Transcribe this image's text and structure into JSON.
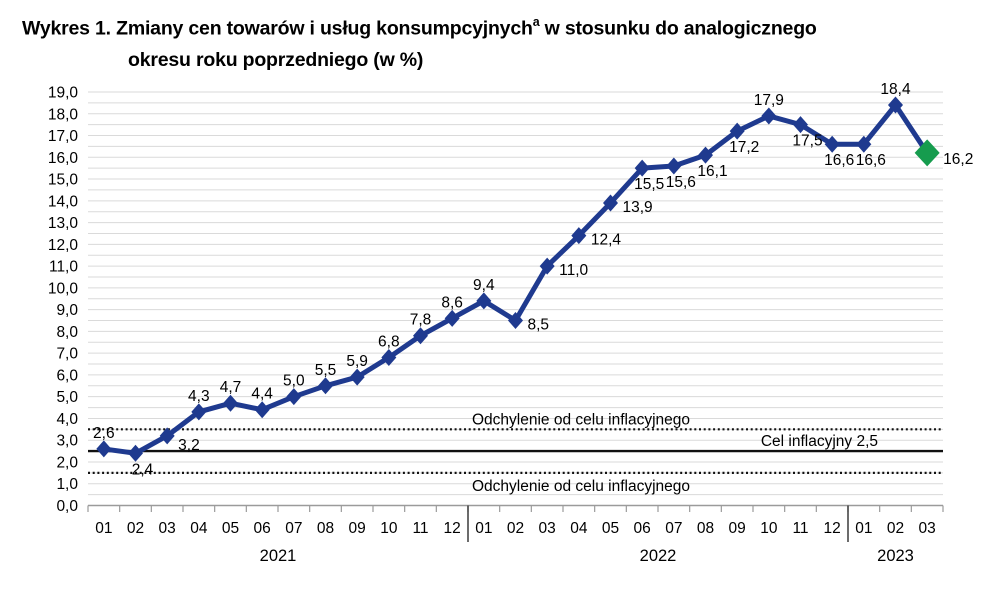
{
  "title": {
    "line1_before_sup": "Wykres 1. Zmiany cen towarów i usług konsumpcyjnych",
    "sup": "a",
    "line1_after_sup": " w stosunku do analogicznego",
    "line2": "okresu roku poprzedniego (w %)"
  },
  "chart_data": {
    "type": "line",
    "title": "Zmiany cen towarów i usług konsumpcyjnych w stosunku do analogicznego okresu roku poprzedniego (w %)",
    "ylim": [
      0,
      19
    ],
    "ytick_step": 1.0,
    "gridline_step": 0.5,
    "grid": true,
    "ytick_labels": [
      "0,0",
      "1,0",
      "2,0",
      "3,0",
      "4,0",
      "5,0",
      "6,0",
      "7,0",
      "8,0",
      "9,0",
      "10,0",
      "11,0",
      "12,0",
      "13,0",
      "14,0",
      "15,0",
      "16,0",
      "17,0",
      "18,0",
      "19,0"
    ],
    "x_groups": [
      {
        "year": "2021",
        "months": [
          "01",
          "02",
          "03",
          "04",
          "05",
          "06",
          "07",
          "08",
          "09",
          "10",
          "11",
          "12"
        ]
      },
      {
        "year": "2022",
        "months": [
          "01",
          "02",
          "03",
          "04",
          "05",
          "06",
          "07",
          "08",
          "09",
          "10",
          "11",
          "12"
        ]
      },
      {
        "year": "2023",
        "months": [
          "01",
          "02",
          "03"
        ]
      }
    ],
    "series": [
      {
        "name": "Zmiany cen towarów i usług konsumpcyjnych (w %)",
        "color": "#1F3A8F",
        "last_point_color": "#169C4E",
        "values": [
          2.6,
          2.4,
          3.2,
          4.3,
          4.7,
          4.4,
          5.0,
          5.5,
          5.9,
          6.8,
          7.8,
          8.6,
          9.4,
          8.5,
          11.0,
          12.4,
          13.9,
          15.5,
          15.6,
          16.1,
          17.2,
          17.9,
          17.5,
          16.6,
          16.6,
          18.4,
          16.2
        ],
        "labels": [
          "2,6",
          "2,4",
          "3,2",
          "4,3",
          "4,7",
          "4,4",
          "5,0",
          "5,5",
          "5,9",
          "6,8",
          "7,8",
          "8,6",
          "9,4",
          "8,5",
          "11,0",
          "12,4",
          "13,9",
          "15,5",
          "15,6",
          "16,1",
          "17,2",
          "17,9",
          "17,5",
          "16,6",
          "16,6",
          "18,4",
          "16,2"
        ],
        "label_positions": [
          "above",
          "below",
          "below-right",
          "above",
          "above",
          "above",
          "above",
          "above",
          "above",
          "above",
          "above",
          "above",
          "above",
          "right",
          "right",
          "right",
          "right",
          "below",
          "below",
          "below",
          "below",
          "above",
          "below",
          "below",
          "below",
          "above",
          "right"
        ]
      }
    ],
    "reference_lines": [
      {
        "name": "deviation-upper-line",
        "value": 3.5,
        "style": "dotted",
        "label": "Odchylenie od celu inflacyjnego",
        "label_pos": "above-center"
      },
      {
        "name": "inflation-target-line",
        "value": 2.5,
        "style": "solid",
        "label": "Cel inflacyjny 2,5",
        "label_pos": "above-right"
      },
      {
        "name": "deviation-lower-line",
        "value": 1.5,
        "style": "dotted",
        "label": "Odchylenie od celu inflacyjnego",
        "label_pos": "below-center"
      }
    ],
    "colors": {
      "gridline": "#DADADA",
      "axis": "#9B9B9B",
      "separator": "#3A3A3A",
      "reference": "#111111",
      "text": "#000000"
    },
    "legend": "none"
  }
}
